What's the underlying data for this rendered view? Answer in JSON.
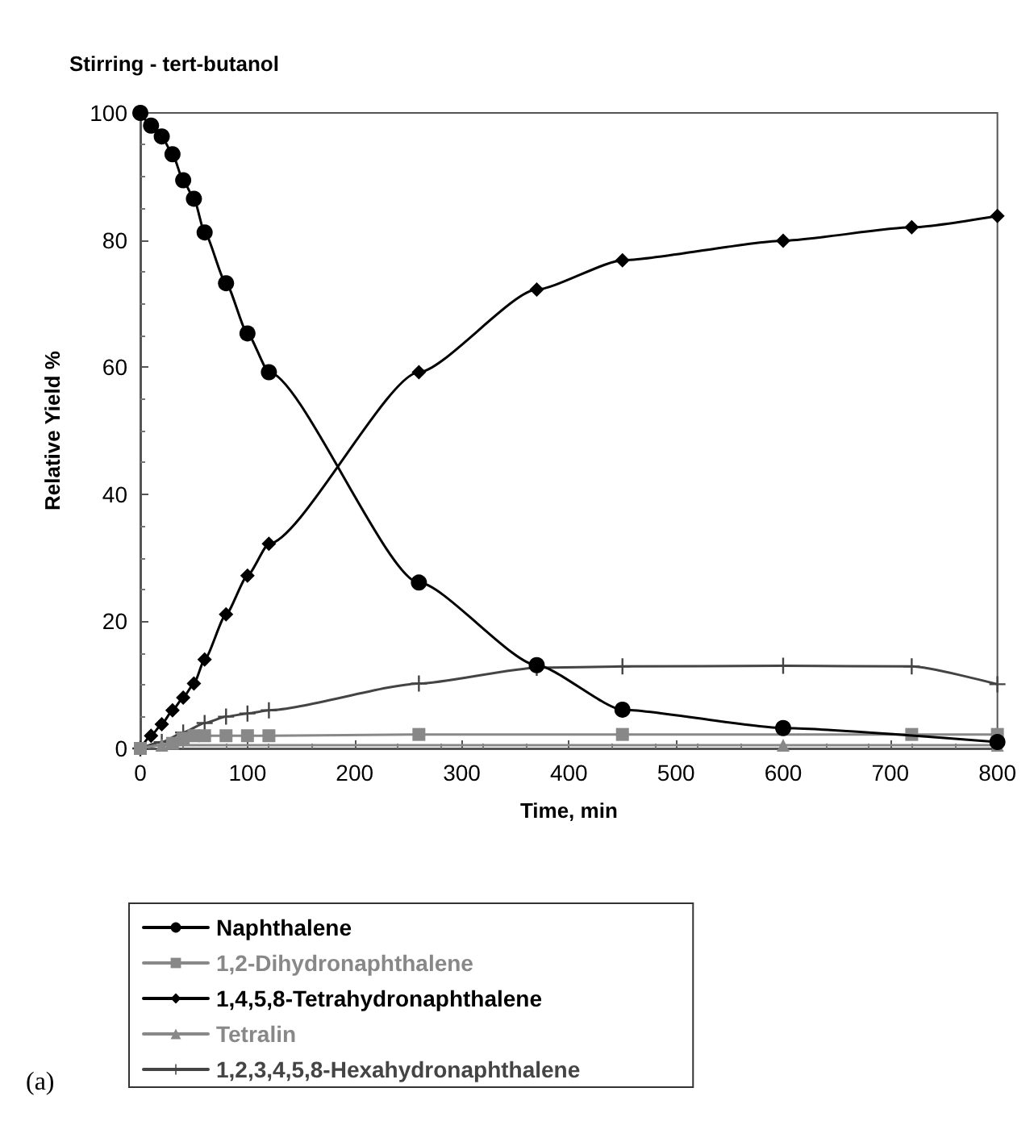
{
  "chart_data": {
    "type": "line",
    "title": "Stirring - tert-butanol",
    "xlabel": "Time, min",
    "ylabel": "Relative Yield %",
    "annotations": [
      "(a)"
    ],
    "xlim": [
      0,
      800
    ],
    "xticks": [
      0,
      100,
      200,
      300,
      400,
      500,
      600,
      700,
      800
    ],
    "ylim": [
      0,
      100
    ],
    "yticks": [
      0,
      20,
      40,
      60,
      80,
      100
    ],
    "grid": false,
    "legend": "bottom left",
    "line_style": "solid",
    "series": [
      {
        "name": "Naphthalene",
        "color": "#000000",
        "marker": "circle",
        "x": [
          0,
          10,
          20,
          30,
          40,
          50,
          60,
          80,
          100,
          120,
          260,
          370,
          450,
          600,
          800
        ],
        "values": [
          100,
          98,
          96.3,
          93.5,
          89.4,
          86.5,
          81.2,
          73.2,
          65.3,
          59.2,
          26.1,
          13.1,
          6.1,
          3.2,
          1
        ]
      },
      {
        "name": "1,2-Dihydronaphthalene",
        "color": "#888888",
        "marker": "square",
        "x": [
          0,
          30,
          40,
          50,
          60,
          80,
          100,
          120,
          260,
          450,
          720,
          800
        ],
        "values": [
          0,
          0.8,
          1.6,
          2,
          2,
          2,
          2,
          2,
          2.2,
          2.2,
          2.2,
          2.2
        ]
      },
      {
        "name": "1,4,5,8-Tetrahydronaphthalene",
        "color": "#000000",
        "marker": "diamond",
        "x": [
          0,
          10,
          20,
          30,
          40,
          50,
          60,
          80,
          100,
          120,
          260,
          370,
          450,
          600,
          720,
          800
        ],
        "values": [
          0,
          2,
          3.8,
          6,
          8,
          10.2,
          14,
          21.1,
          27.2,
          32.2,
          59.2,
          72.2,
          76.8,
          79.9,
          82,
          83.8
        ]
      },
      {
        "name": "Tetralin",
        "color": "#888888",
        "marker": "triangle",
        "x": [
          0,
          20,
          600,
          800
        ],
        "values": [
          0,
          0.5,
          0.5,
          0.5
        ]
      },
      {
        "name": "1,2,3,4,5,8-Hexahydronaphthalene",
        "color": "#444444",
        "marker": "cross",
        "x": [
          0,
          20,
          40,
          60,
          80,
          100,
          120,
          260,
          370,
          450,
          600,
          720,
          800
        ],
        "values": [
          0,
          1,
          2.5,
          4,
          5,
          5.5,
          6,
          10.2,
          12.7,
          12.9,
          13,
          12.9,
          10.1
        ]
      }
    ]
  }
}
